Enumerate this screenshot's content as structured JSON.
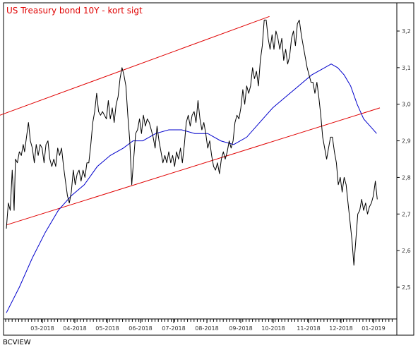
{
  "chart_data": {
    "type": "line",
    "title": "US Treasury bond 10Y - kort sigt",
    "credit": "BCVIEW",
    "x_tick_labels": [
      "03-2018",
      "04-2018",
      "05-2018",
      "06-2018",
      "07-2018",
      "08-2018",
      "09-2018",
      "10-2018",
      "11-2018",
      "12-2018",
      "01-2019"
    ],
    "y_tick_labels": [
      "3,2",
      "3,1",
      "3,0",
      "2,9",
      "2,8",
      "2,7",
      "2,6",
      "2,5"
    ],
    "ylim": [
      2.42,
      3.25
    ],
    "grid": false,
    "colors": {
      "price": "#000000",
      "moving_average": "#0000cc",
      "channel": "#e00000",
      "title": "#e00000"
    },
    "series": [
      {
        "role": "price",
        "points": [
          [
            0,
            2.66
          ],
          [
            0.3,
            2.73
          ],
          [
            0.6,
            2.71
          ],
          [
            0.9,
            2.82
          ],
          [
            1.2,
            2.71
          ],
          [
            1.4,
            2.85
          ],
          [
            1.7,
            2.84
          ],
          [
            2.0,
            2.87
          ],
          [
            2.3,
            2.86
          ],
          [
            2.6,
            2.89
          ],
          [
            2.8,
            2.87
          ],
          [
            3.1,
            2.91
          ],
          [
            3.4,
            2.95
          ],
          [
            3.7,
            2.9
          ],
          [
            4.0,
            2.88
          ],
          [
            4.3,
            2.84
          ],
          [
            4.6,
            2.89
          ],
          [
            4.9,
            2.86
          ],
          [
            5.2,
            2.89
          ],
          [
            5.5,
            2.88
          ],
          [
            5.8,
            2.84
          ],
          [
            6.1,
            2.89
          ],
          [
            6.4,
            2.9
          ],
          [
            6.7,
            2.85
          ],
          [
            7.0,
            2.83
          ],
          [
            7.3,
            2.85
          ],
          [
            7.6,
            2.83
          ],
          [
            7.9,
            2.88
          ],
          [
            8.2,
            2.86
          ],
          [
            8.5,
            2.88
          ],
          [
            8.8,
            2.83
          ],
          [
            9.1,
            2.79
          ],
          [
            9.4,
            2.75
          ],
          [
            9.7,
            2.73
          ],
          [
            10.0,
            2.76
          ],
          [
            10.3,
            2.82
          ],
          [
            10.6,
            2.78
          ],
          [
            10.9,
            2.81
          ],
          [
            11.2,
            2.82
          ],
          [
            11.5,
            2.79
          ],
          [
            11.8,
            2.82
          ],
          [
            12.1,
            2.8
          ],
          [
            12.4,
            2.84
          ],
          [
            12.7,
            2.84
          ],
          [
            13.0,
            2.89
          ],
          [
            13.3,
            2.95
          ],
          [
            13.6,
            2.98
          ],
          [
            13.9,
            3.03
          ],
          [
            14.2,
            2.98
          ],
          [
            14.5,
            2.97
          ],
          [
            14.8,
            2.98
          ],
          [
            15.1,
            2.97
          ],
          [
            15.4,
            2.96
          ],
          [
            15.7,
            3.01
          ],
          [
            16.0,
            2.96
          ],
          [
            16.3,
            2.99
          ],
          [
            16.6,
            2.95
          ],
          [
            16.9,
            3.0
          ],
          [
            17.2,
            3.02
          ],
          [
            17.5,
            3.07
          ],
          [
            17.8,
            3.1
          ],
          [
            18.1,
            3.08
          ],
          [
            18.4,
            3.05
          ],
          [
            18.7,
            2.97
          ],
          [
            19.0,
            2.9
          ],
          [
            19.3,
            2.78
          ],
          [
            19.6,
            2.85
          ],
          [
            19.9,
            2.92
          ],
          [
            20.2,
            2.93
          ],
          [
            20.5,
            2.96
          ],
          [
            20.8,
            2.92
          ],
          [
            21.1,
            2.97
          ],
          [
            21.4,
            2.94
          ],
          [
            21.7,
            2.96
          ],
          [
            22.0,
            2.95
          ],
          [
            22.3,
            2.93
          ],
          [
            22.6,
            2.91
          ],
          [
            22.9,
            2.88
          ],
          [
            23.2,
            2.94
          ],
          [
            23.5,
            2.9
          ],
          [
            23.8,
            2.87
          ],
          [
            24.1,
            2.84
          ],
          [
            24.4,
            2.86
          ],
          [
            24.7,
            2.84
          ],
          [
            25.0,
            2.87
          ],
          [
            25.3,
            2.84
          ],
          [
            25.6,
            2.86
          ],
          [
            25.9,
            2.83
          ],
          [
            26.2,
            2.87
          ],
          [
            26.5,
            2.85
          ],
          [
            26.8,
            2.88
          ],
          [
            27.1,
            2.84
          ],
          [
            27.4,
            2.89
          ],
          [
            27.7,
            2.95
          ],
          [
            28.0,
            2.97
          ],
          [
            28.3,
            2.94
          ],
          [
            28.6,
            2.97
          ],
          [
            28.9,
            2.98
          ],
          [
            29.2,
            2.95
          ],
          [
            29.5,
            3.01
          ],
          [
            29.8,
            2.96
          ],
          [
            30.1,
            2.93
          ],
          [
            30.4,
            2.95
          ],
          [
            30.7,
            2.92
          ],
          [
            31.0,
            2.88
          ],
          [
            31.3,
            2.9
          ],
          [
            31.6,
            2.86
          ],
          [
            31.9,
            2.83
          ],
          [
            32.2,
            2.82
          ],
          [
            32.5,
            2.84
          ],
          [
            32.8,
            2.81
          ],
          [
            33.1,
            2.85
          ],
          [
            33.4,
            2.87
          ],
          [
            33.7,
            2.85
          ],
          [
            34.0,
            2.87
          ],
          [
            34.3,
            2.9
          ],
          [
            34.6,
            2.88
          ],
          [
            34.9,
            2.9
          ],
          [
            35.2,
            2.95
          ],
          [
            35.5,
            2.97
          ],
          [
            35.8,
            2.96
          ],
          [
            36.1,
            2.99
          ],
          [
            36.4,
            3.04
          ],
          [
            36.7,
            3.0
          ],
          [
            37.0,
            3.05
          ],
          [
            37.3,
            3.03
          ],
          [
            37.6,
            3.05
          ],
          [
            37.9,
            3.1
          ],
          [
            38.2,
            3.07
          ],
          [
            38.5,
            3.09
          ],
          [
            38.8,
            3.05
          ],
          [
            39.1,
            3.12
          ],
          [
            39.4,
            3.16
          ],
          [
            39.7,
            3.23
          ],
          [
            40.0,
            3.23
          ],
          [
            40.3,
            3.18
          ],
          [
            40.6,
            3.15
          ],
          [
            40.9,
            3.19
          ],
          [
            41.2,
            3.15
          ],
          [
            41.5,
            3.2
          ],
          [
            41.8,
            3.18
          ],
          [
            42.1,
            3.15
          ],
          [
            42.4,
            3.18
          ],
          [
            42.7,
            3.12
          ],
          [
            43.0,
            3.15
          ],
          [
            43.3,
            3.11
          ],
          [
            43.6,
            3.13
          ],
          [
            43.9,
            3.18
          ],
          [
            44.2,
            3.2
          ],
          [
            44.5,
            3.16
          ],
          [
            44.8,
            3.22
          ],
          [
            45.1,
            3.23
          ],
          [
            45.4,
            3.19
          ],
          [
            45.7,
            3.16
          ],
          [
            46.0,
            3.13
          ],
          [
            46.3,
            3.1
          ],
          [
            46.6,
            3.08
          ],
          [
            46.9,
            3.06
          ],
          [
            47.2,
            3.06
          ],
          [
            47.5,
            3.03
          ],
          [
            47.8,
            3.06
          ],
          [
            48.1,
            3.02
          ],
          [
            48.4,
            2.97
          ],
          [
            48.7,
            2.91
          ],
          [
            49.0,
            2.88
          ],
          [
            49.3,
            2.85
          ],
          [
            49.6,
            2.88
          ],
          [
            49.9,
            2.91
          ],
          [
            50.2,
            2.91
          ],
          [
            50.5,
            2.87
          ],
          [
            50.8,
            2.84
          ],
          [
            51.1,
            2.78
          ],
          [
            51.4,
            2.8
          ],
          [
            51.7,
            2.76
          ],
          [
            52.0,
            2.8
          ],
          [
            52.3,
            2.78
          ],
          [
            52.6,
            2.73
          ],
          [
            52.9,
            2.68
          ],
          [
            53.2,
            2.63
          ],
          [
            53.5,
            2.56
          ],
          [
            53.8,
            2.63
          ],
          [
            54.1,
            2.7
          ],
          [
            54.4,
            2.71
          ],
          [
            54.7,
            2.74
          ],
          [
            55.0,
            2.71
          ],
          [
            55.3,
            2.73
          ],
          [
            55.6,
            2.7
          ],
          [
            55.9,
            2.72
          ],
          [
            56.2,
            2.73
          ],
          [
            56.5,
            2.75
          ],
          [
            56.8,
            2.79
          ],
          [
            57.1,
            2.74
          ]
        ]
      },
      {
        "role": "moving_average",
        "points": [
          [
            0,
            2.43
          ],
          [
            2,
            2.5
          ],
          [
            4,
            2.58
          ],
          [
            6,
            2.65
          ],
          [
            8,
            2.71
          ],
          [
            10,
            2.75
          ],
          [
            12,
            2.78
          ],
          [
            14,
            2.83
          ],
          [
            16,
            2.86
          ],
          [
            18,
            2.88
          ],
          [
            19.5,
            2.9
          ],
          [
            21,
            2.9
          ],
          [
            23,
            2.92
          ],
          [
            25,
            2.93
          ],
          [
            27,
            2.93
          ],
          [
            29,
            2.92
          ],
          [
            31,
            2.92
          ],
          [
            33,
            2.9
          ],
          [
            35,
            2.89
          ],
          [
            37,
            2.91
          ],
          [
            39,
            2.95
          ],
          [
            41,
            2.99
          ],
          [
            43,
            3.02
          ],
          [
            45,
            3.05
          ],
          [
            47,
            3.08
          ],
          [
            49,
            3.1
          ],
          [
            50,
            3.11
          ],
          [
            51,
            3.1
          ],
          [
            52,
            3.08
          ],
          [
            53,
            3.05
          ],
          [
            54,
            3.0
          ],
          [
            55,
            2.96
          ],
          [
            56,
            2.94
          ],
          [
            57,
            2.92
          ]
        ]
      },
      {
        "role": "channel",
        "points": [
          [
            -1,
            2.97
          ],
          [
            40.5,
            3.24
          ]
        ]
      },
      {
        "role": "channel",
        "points": [
          [
            0,
            2.67
          ],
          [
            57.5,
            2.99
          ]
        ]
      }
    ]
  }
}
